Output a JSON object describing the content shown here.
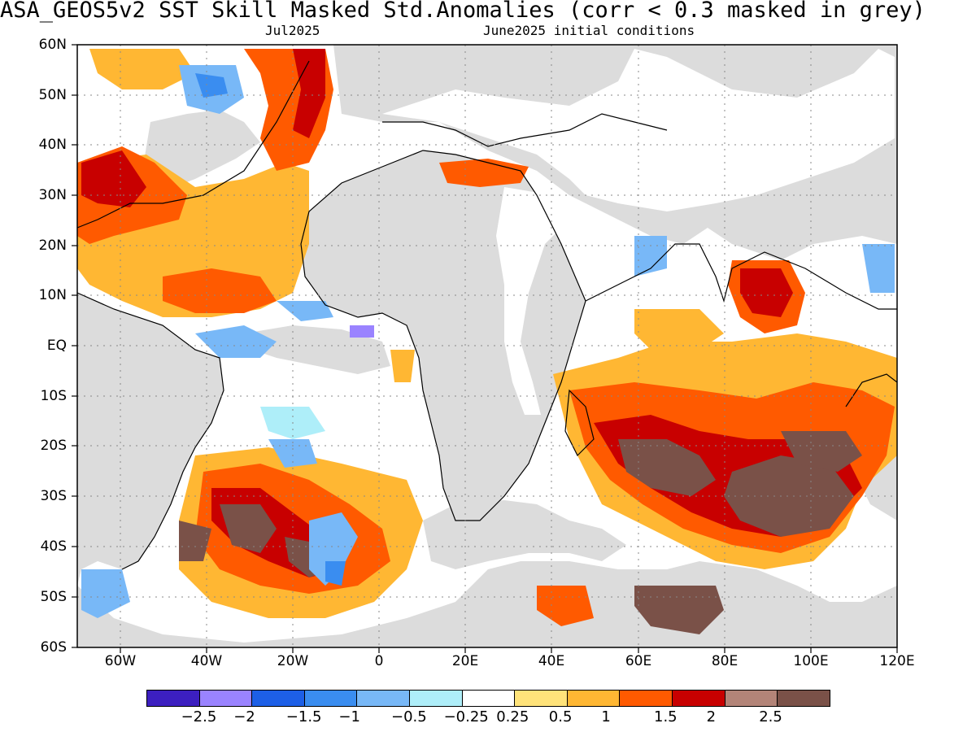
{
  "header": {
    "title": "ASA_GEOS5v2  SST Skill Masked Std.Anomalies (corr < 0.3 masked in grey)",
    "valid_month": "Jul2025",
    "init_conditions": "June2025 initial conditions"
  },
  "map": {
    "lat_labels": [
      "60N",
      "50N",
      "40N",
      "30N",
      "20N",
      "10N",
      "EQ",
      "10S",
      "20S",
      "30S",
      "40S",
      "50S",
      "60S"
    ],
    "lon_labels": [
      "60W",
      "40W",
      "20W",
      "0",
      "20E",
      "40E",
      "60E",
      "80E",
      "100E",
      "120E"
    ],
    "lon_range": [
      -70,
      120
    ],
    "lat_range": [
      -60,
      60
    ],
    "mask_color": "#dcdcdc",
    "grid_style": "dotted"
  },
  "legend": {
    "colors": [
      "#3c1fc0",
      "#9a83ff",
      "#1d5fe6",
      "#3a8df0",
      "#78b8f7",
      "#aeeef9",
      "#ffffff",
      "#ffe37a",
      "#ffb733",
      "#ff5a00",
      "#c80000",
      "#b38478",
      "#7a5148"
    ],
    "labels": [
      "−2.5",
      "−2",
      "−1.5",
      "−1",
      "−0.5",
      "−0.25",
      "0.25",
      "0.5",
      "1",
      "1.5",
      "2",
      "2.5"
    ]
  }
}
